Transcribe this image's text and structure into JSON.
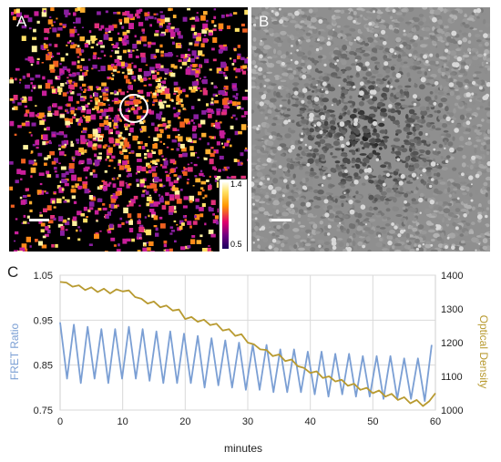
{
  "panels": {
    "a": {
      "letter": "A"
    },
    "b": {
      "letter": "B"
    },
    "c": {
      "letter": "C"
    }
  },
  "colorbar": {
    "max_label": "1.4",
    "min_label": "0.5"
  },
  "chart_data": {
    "type": "line",
    "xlabel": "minutes",
    "ylabel_left": "FRET Ratio",
    "ylabel_right": "Optical Density",
    "xlim": [
      0,
      60
    ],
    "ylim_left": [
      0.75,
      1.05
    ],
    "ylim_right": [
      1000,
      1400
    ],
    "x_ticks": [
      "0",
      "10",
      "20",
      "30",
      "40",
      "50",
      "60"
    ],
    "y_left_ticks": [
      "1.05",
      "0.95",
      "0.85",
      "0.75"
    ],
    "y_right_ticks": [
      "1400",
      "1300",
      "1200",
      "1100",
      "1000"
    ],
    "grid": true,
    "series": [
      {
        "axis": "left",
        "color": "#7b9fd4",
        "x": [
          0,
          1.1,
          2.2,
          3.3,
          4.4,
          5.5,
          6.6,
          7.7,
          8.8,
          9.9,
          11,
          12.1,
          13.2,
          14.3,
          15.4,
          16.5,
          17.6,
          18.7,
          19.8,
          20.9,
          22,
          23.1,
          24.2,
          25.3,
          26.4,
          27.5,
          28.6,
          29.7,
          30.8,
          31.9,
          33,
          34.1,
          35.2,
          36.3,
          37.4,
          38.5,
          39.6,
          40.7,
          41.8,
          42.9,
          44,
          45.1,
          46.2,
          47.3,
          48.4,
          49.5,
          50.6,
          51.7,
          52.8,
          53.9,
          55,
          56.1,
          57.2,
          58.3,
          59.4
        ],
        "values": [
          0.945,
          0.82,
          0.94,
          0.81,
          0.935,
          0.82,
          0.93,
          0.81,
          0.93,
          0.82,
          0.935,
          0.82,
          0.93,
          0.815,
          0.925,
          0.81,
          0.925,
          0.81,
          0.92,
          0.81,
          0.915,
          0.8,
          0.91,
          0.805,
          0.905,
          0.8,
          0.9,
          0.795,
          0.895,
          0.795,
          0.895,
          0.79,
          0.885,
          0.79,
          0.885,
          0.79,
          0.88,
          0.785,
          0.88,
          0.78,
          0.875,
          0.785,
          0.875,
          0.78,
          0.87,
          0.78,
          0.87,
          0.775,
          0.87,
          0.775,
          0.865,
          0.775,
          0.865,
          0.77,
          0.895
        ]
      },
      {
        "axis": "right",
        "color": "#b89a30",
        "x": [
          0,
          1,
          2,
          3,
          4,
          5,
          6,
          7,
          8,
          9,
          10,
          11,
          12,
          13,
          14,
          15,
          16,
          17,
          18,
          19,
          20,
          21,
          22,
          23,
          24,
          25,
          26,
          27,
          28,
          29,
          30,
          31,
          32,
          33,
          34,
          35,
          36,
          37,
          38,
          39,
          40,
          41,
          42,
          43,
          44,
          45,
          46,
          47,
          48,
          49,
          50,
          51,
          52,
          53,
          54,
          55,
          56,
          57,
          58,
          59,
          60
        ],
        "values": [
          1380,
          1378,
          1366,
          1370,
          1356,
          1364,
          1350,
          1360,
          1346,
          1358,
          1352,
          1355,
          1335,
          1330,
          1316,
          1322,
          1305,
          1310,
          1295,
          1298,
          1270,
          1276,
          1262,
          1268,
          1252,
          1256,
          1236,
          1240,
          1220,
          1225,
          1200,
          1195,
          1180,
          1178,
          1160,
          1165,
          1145,
          1150,
          1130,
          1125,
          1110,
          1115,
          1095,
          1100,
          1085,
          1090,
          1072,
          1078,
          1060,
          1066,
          1050,
          1058,
          1040,
          1048,
          1030,
          1038,
          1020,
          1030,
          1012,
          1026,
          1050
        ]
      }
    ]
  }
}
